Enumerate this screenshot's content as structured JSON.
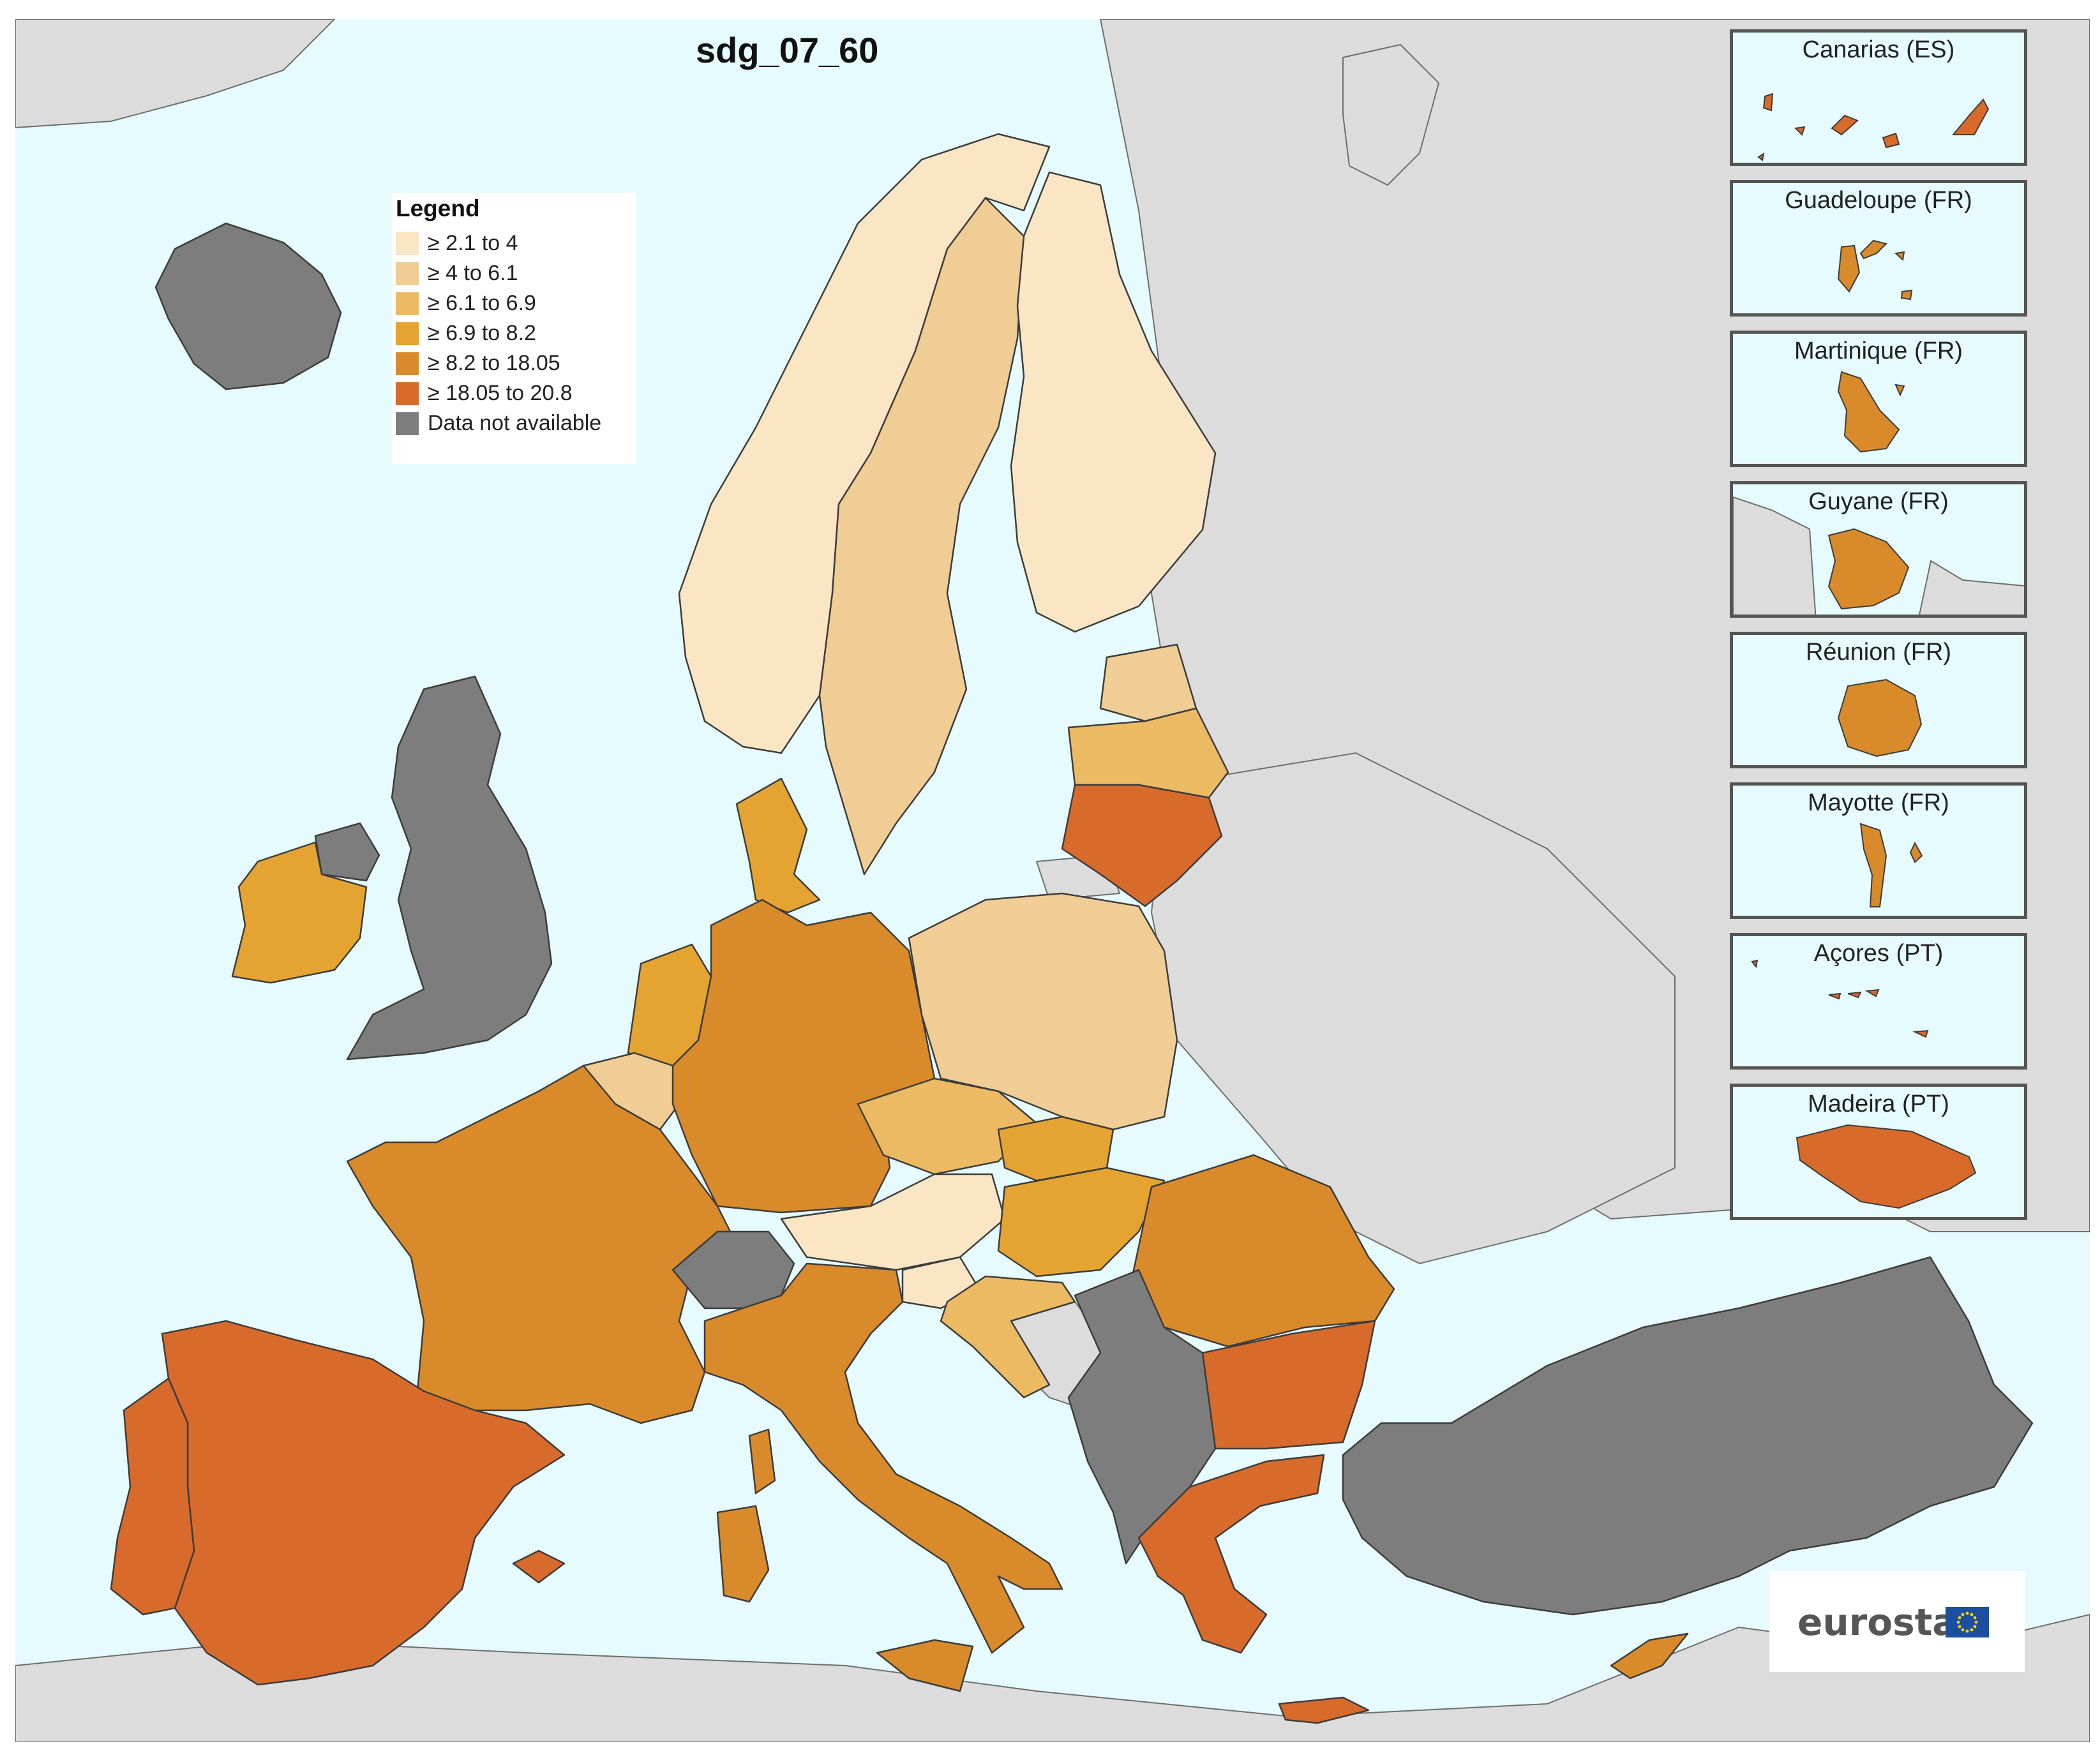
{
  "title": "sdg_07_60",
  "legend": {
    "title": "Legend",
    "items": [
      {
        "label": "≥ 2.1 to 4",
        "color": "#fae5c4"
      },
      {
        "label": "≥ 4 to 6.1",
        "color": "#f0cd94"
      },
      {
        "label": "≥ 6.1 to 6.9",
        "color": "#ecba62"
      },
      {
        "label": "≥ 6.9 to 8.2",
        "color": "#e5a432"
      },
      {
        "label": "≥ 8.2 to 18.05",
        "color": "#d98a2a"
      },
      {
        "label": "≥ 18.05 to 20.8",
        "color": "#d86a2c"
      },
      {
        "label": "Data not available",
        "color": "#7d7d7d"
      }
    ]
  },
  "insets": [
    {
      "label": "Canarias (ES)",
      "color": "#d86a2c"
    },
    {
      "label": "Guadeloupe (FR)",
      "color": "#d98a2a"
    },
    {
      "label": "Martinique (FR)",
      "color": "#d98a2a"
    },
    {
      "label": "Guyane (FR)",
      "color": "#d98a2a"
    },
    {
      "label": "Réunion (FR)",
      "color": "#d98a2a"
    },
    {
      "label": "Mayotte (FR)",
      "color": "#d98a2a"
    },
    {
      "label": "Açores (PT)",
      "color": "#d86a2c"
    },
    {
      "label": "Madeira (PT)",
      "color": "#d86a2c"
    }
  ],
  "logo": {
    "text": "eurostat"
  },
  "colors": {
    "sea": "#e6fbfd",
    "non_eu_land": "#dcdcdc",
    "no_data": "#7d7d7d"
  }
}
